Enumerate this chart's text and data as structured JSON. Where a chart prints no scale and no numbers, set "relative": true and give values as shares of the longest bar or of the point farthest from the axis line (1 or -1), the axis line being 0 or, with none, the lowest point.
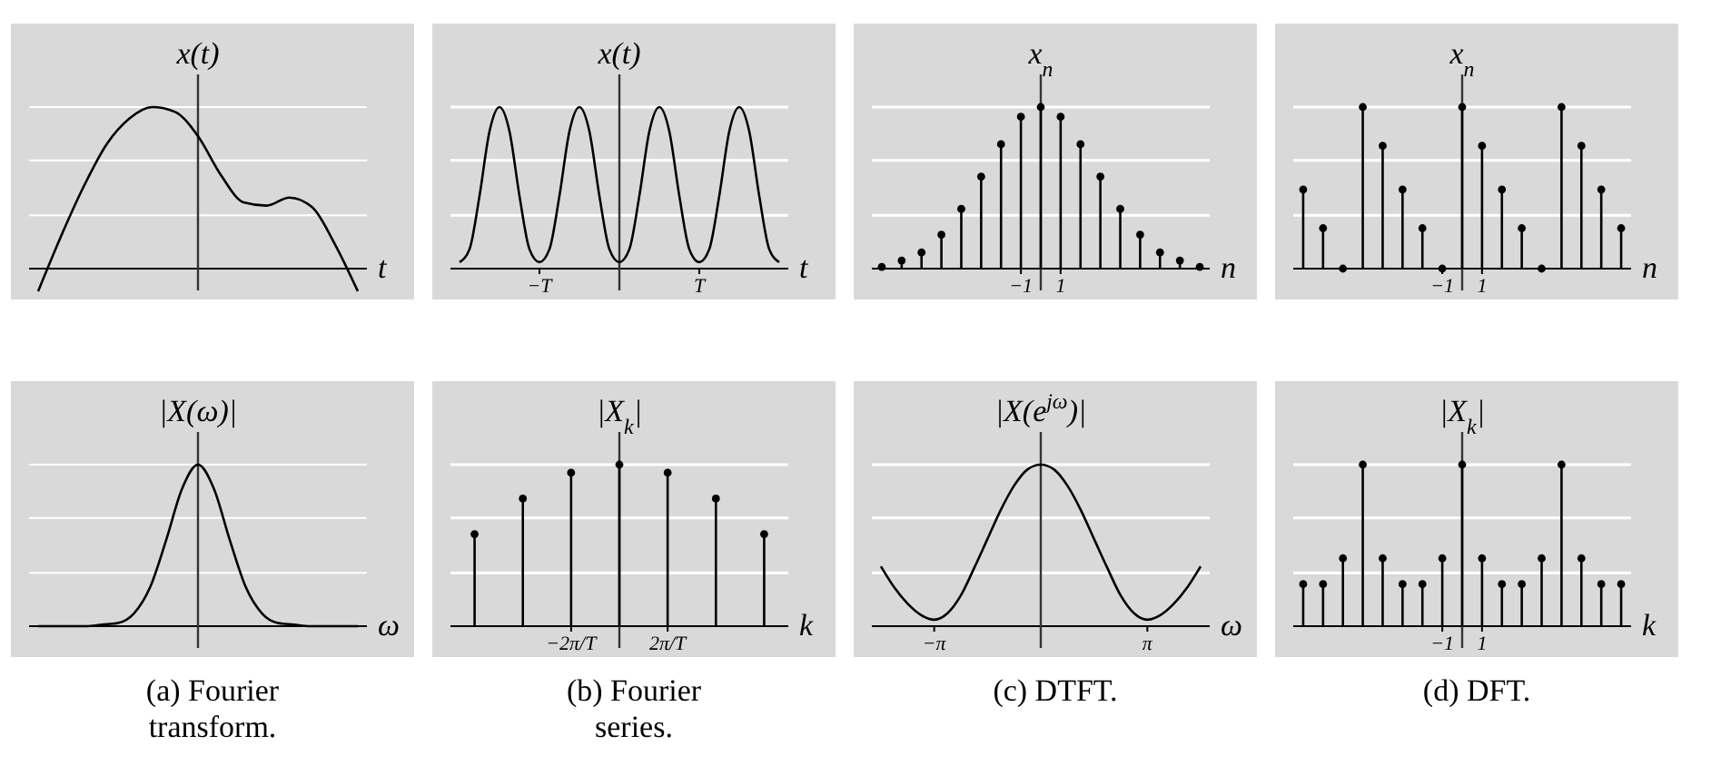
{
  "chart_data": [
    {
      "type": "line",
      "relative": true,
      "categories": [
        null,
        null,
        null,
        null,
        null,
        null,
        null,
        null,
        null,
        null,
        null,
        null,
        null,
        null,
        null
      ],
      "values": [
        -0.14,
        0.2,
        0.51,
        0.77,
        0.93,
        1,
        0.97,
        0.82,
        0.58,
        0.41,
        0.39,
        0.44,
        0.38,
        0.15,
        -0.14
      ],
      "color": "#000000",
      "xlabel": "t",
      "ylabel": "x(t)",
      "ref_lines": [
        {
          "axis": "y",
          "value": 0.33,
          "color": "#ffffff"
        },
        {
          "axis": "y",
          "value": 0.67,
          "color": "#ffffff"
        },
        {
          "axis": "y",
          "value": 1,
          "color": "#ffffff"
        }
      ]
    },
    {
      "type": "line",
      "relative": true,
      "categories": [
        null,
        null,
        null,
        null,
        null,
        null,
        null,
        null,
        "−T",
        null,
        null,
        null,
        null,
        null,
        null,
        null,
        null,
        null,
        null,
        null,
        null,
        null,
        null,
        null,
        "T",
        null,
        null,
        null,
        null,
        null,
        null,
        null,
        null
      ],
      "values": [
        0.04,
        0.12,
        0.45,
        0.85,
        1,
        0.85,
        0.45,
        0.12,
        0.04,
        0.12,
        0.45,
        0.85,
        1,
        0.85,
        0.45,
        0.12,
        0.04,
        0.12,
        0.45,
        0.85,
        1,
        0.85,
        0.45,
        0.12,
        0.04,
        0.12,
        0.45,
        0.85,
        1,
        0.85,
        0.45,
        0.12,
        0.04
      ],
      "color": "#000000",
      "xlabel": "t",
      "ylabel": "x(t)",
      "grid": true,
      "ref_lines": [
        {
          "axis": "y",
          "value": 0.33,
          "color": "#ffffff"
        },
        {
          "axis": "y",
          "value": 0.67,
          "color": "#ffffff"
        },
        {
          "axis": "y",
          "value": 1,
          "color": "#ffffff"
        }
      ]
    },
    {
      "type": "lollipop",
      "relative": true,
      "categories": [
        null,
        null,
        null,
        null,
        null,
        null,
        null,
        "−1",
        null,
        "1",
        null,
        null,
        null,
        null,
        null,
        null,
        null
      ],
      "values": [
        0.01,
        0.05,
        0.1,
        0.21,
        0.37,
        0.57,
        0.77,
        0.94,
        1,
        0.94,
        0.77,
        0.57,
        0.37,
        0.21,
        0.1,
        0.05,
        0.01
      ],
      "color": "#000000",
      "marker": "circle",
      "xlabel": "n",
      "ylabel": "x$_{n}$",
      "grid": true,
      "ref_lines": [
        {
          "axis": "y",
          "value": 0.33,
          "color": "#ffffff"
        },
        {
          "axis": "y",
          "value": 0.67,
          "color": "#ffffff"
        },
        {
          "axis": "y",
          "value": 1,
          "color": "#ffffff"
        }
      ]
    },
    {
      "type": "lollipop",
      "relative": true,
      "categories": [
        null,
        null,
        null,
        null,
        null,
        null,
        null,
        "−1",
        null,
        "1",
        null,
        null,
        null,
        null,
        null,
        null,
        null
      ],
      "values": [
        0.49,
        0.25,
        0,
        1,
        0.76,
        0.49,
        0.25,
        0,
        1,
        0.76,
        0.49,
        0.25,
        0,
        1,
        0.76,
        0.49,
        0.25
      ],
      "color": "#000000",
      "marker": "circle",
      "xlabel": "n",
      "ylabel": "x$_{n}$",
      "grid": true,
      "ref_lines": [
        {
          "axis": "y",
          "value": 0.33,
          "color": "#ffffff"
        },
        {
          "axis": "y",
          "value": 0.67,
          "color": "#ffffff"
        },
        {
          "axis": "y",
          "value": 1,
          "color": "#ffffff"
        }
      ]
    },
    {
      "type": "line",
      "relative": true,
      "categories": [
        null,
        null,
        null,
        null,
        null,
        null,
        null,
        null,
        null,
        null,
        null,
        null,
        null,
        null,
        null,
        null,
        null,
        null,
        null,
        null,
        null
      ],
      "values": [
        0,
        0,
        0,
        0,
        0.01,
        0.02,
        0.08,
        0.24,
        0.53,
        0.85,
        1,
        0.85,
        0.53,
        0.24,
        0.08,
        0.02,
        0.01,
        0,
        0,
        0,
        0
      ],
      "color": "#000000",
      "xlabel": "ω",
      "ylabel": "|X(ω)|",
      "ref_lines": [
        {
          "axis": "y",
          "value": 0.33,
          "color": "#ffffff"
        },
        {
          "axis": "y",
          "value": 0.67,
          "color": "#ffffff"
        },
        {
          "axis": "y",
          "value": 1,
          "color": "#ffffff"
        }
      ],
      "title": "(a) Fourier transform."
    },
    {
      "type": "lollipop",
      "relative": true,
      "categories": [
        null,
        null,
        "−2π/T",
        null,
        "2π/T",
        null,
        null
      ],
      "values": [
        0.57,
        0.79,
        0.95,
        1,
        0.95,
        0.79,
        0.57
      ],
      "color": "#000000",
      "marker": "circle",
      "xlabel": "k",
      "ylabel": "|X$_{k}$|",
      "grid": true,
      "ref_lines": [
        {
          "axis": "y",
          "value": 0.33,
          "color": "#ffffff"
        },
        {
          "axis": "y",
          "value": 0.67,
          "color": "#ffffff"
        },
        {
          "axis": "y",
          "value": 1,
          "color": "#ffffff"
        }
      ],
      "title": "(b) Fourier series."
    },
    {
      "type": "line",
      "relative": true,
      "categories": [
        null,
        null,
        null,
        null,
        "−π",
        null,
        null,
        null,
        null,
        null,
        null,
        null,
        null,
        null,
        null,
        null,
        null,
        null,
        null,
        null,
        "π",
        null,
        null,
        null,
        null
      ],
      "values": [
        0.37,
        0.24,
        0.14,
        0.07,
        0.04,
        0.08,
        0.19,
        0.36,
        0.54,
        0.72,
        0.87,
        0.97,
        1,
        0.97,
        0.87,
        0.72,
        0.54,
        0.36,
        0.19,
        0.08,
        0.04,
        0.07,
        0.14,
        0.24,
        0.37
      ],
      "color": "#000000",
      "xlabel": "ω",
      "ylabel": "|X(e$^{jω}$)|",
      "grid": true,
      "ref_lines": [
        {
          "axis": "y",
          "value": 0.33,
          "color": "#ffffff"
        },
        {
          "axis": "y",
          "value": 0.67,
          "color": "#ffffff"
        },
        {
          "axis": "y",
          "value": 1,
          "color": "#ffffff"
        }
      ],
      "title": "(c) DTFT."
    },
    {
      "type": "lollipop",
      "relative": true,
      "categories": [
        null,
        null,
        null,
        null,
        null,
        null,
        null,
        "−1",
        null,
        "1",
        null,
        null,
        null,
        null,
        null,
        null,
        null
      ],
      "values": [
        0.26,
        0.26,
        0.42,
        1,
        0.42,
        0.26,
        0.26,
        0.42,
        1,
        0.42,
        0.26,
        0.26,
        0.42,
        1,
        0.42,
        0.26,
        0.26
      ],
      "color": "#000000",
      "marker": "circle",
      "xlabel": "k",
      "ylabel": "|X$_{k}$|",
      "grid": true,
      "ref_lines": [
        {
          "axis": "y",
          "value": 0.33,
          "color": "#ffffff"
        },
        {
          "axis": "y",
          "value": 0.67,
          "color": "#ffffff"
        },
        {
          "axis": "y",
          "value": 1,
          "color": "#ffffff"
        }
      ],
      "title": "(d) DFT."
    }
  ]
}
